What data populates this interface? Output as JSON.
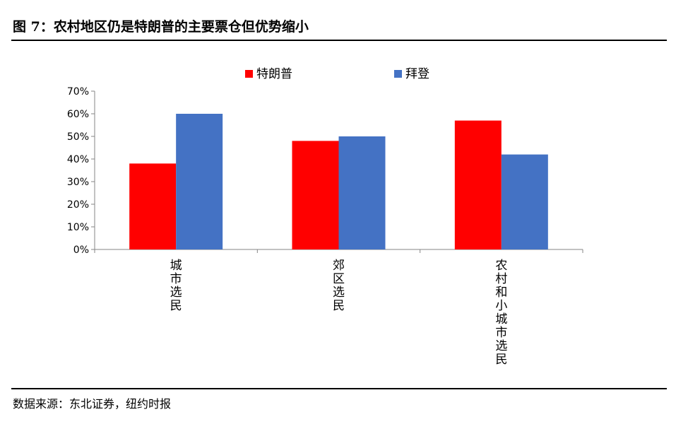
{
  "figure": {
    "title": "图 7：农村地区仍是特朗普的主要票仓但优势缩小",
    "source": "数据来源：东北证券，纽约时报"
  },
  "chart_data": {
    "type": "bar",
    "categories": [
      "城市选民",
      "郊区选民",
      "农村和小城市选民"
    ],
    "series": [
      {
        "name": "特朗普",
        "color": "#FF0000",
        "values": [
          0.38,
          0.48,
          0.57
        ]
      },
      {
        "name": "拜登",
        "color": "#4472C4",
        "values": [
          0.6,
          0.5,
          0.42
        ]
      }
    ],
    "yticks": [
      "0%",
      "10%",
      "20%",
      "30%",
      "40%",
      "50%",
      "60%",
      "70%"
    ],
    "ylim": [
      0,
      0.7
    ],
    "grid": false,
    "legend": "top-center",
    "xlabel": "",
    "ylabel": ""
  }
}
